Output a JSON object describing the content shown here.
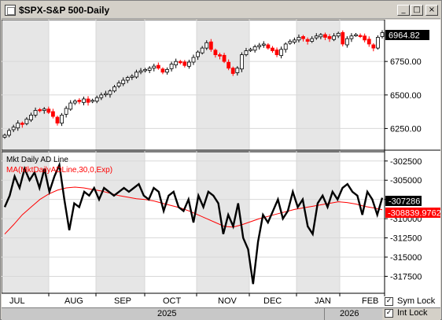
{
  "window": {
    "title": "$SPX-S&P 500-Daily",
    "minimize": "_",
    "maximize": "□",
    "close": "×"
  },
  "price_panel": {
    "last_price_label": "6964.82",
    "y_ticks": [
      "6964.82",
      "6750.00",
      "6500.00",
      "6250.00"
    ]
  },
  "indicator_panel": {
    "label_line": "Mkt Daily AD Line",
    "label_ma": "MA(MktDailyADLine,30,0,Exp)",
    "last_value_label": "-307286",
    "last_ma_label": "-308839.9762",
    "y_ticks": [
      "-302500",
      "-305000",
      "-307500",
      "-310000",
      "-312500",
      "-315000",
      "-317500"
    ]
  },
  "x_axis": {
    "months": [
      "JUL",
      "AUG",
      "SEP",
      "OCT",
      "NOV",
      "DEC",
      "JAN",
      "FEB"
    ],
    "years": [
      "2025",
      "2026"
    ]
  },
  "footer": {
    "sym_lock": "Sym Lock",
    "int_lock": "Int Lock",
    "sym_lock_checked": true,
    "int_lock_checked": true
  },
  "colors": {
    "up_candle": "#000000",
    "down_candle": "#ff0000",
    "ad_line": "#000000",
    "ma_line": "#ff0000",
    "last_value_bg": "#000000",
    "last_ma_bg": "#ff0000"
  },
  "chart_data": {
    "type": "line",
    "series": [
      {
        "name": "$SPX-S&P 500-Daily",
        "values": [
          6200,
          6235,
          6260,
          6290,
          6280,
          6320,
          6350,
          6385,
          6390,
          6395,
          6370,
          6340,
          6290,
          6350,
          6400,
          6440,
          6455,
          6450,
          6470,
          6445,
          6460,
          6480,
          6500,
          6510,
          6530,
          6560,
          6590,
          6610,
          6630,
          6640,
          6670,
          6680,
          6690,
          6700,
          6715,
          6700,
          6670,
          6690,
          6730,
          6750,
          6740,
          6720,
          6745,
          6780,
          6820,
          6850,
          6890,
          6840,
          6800,
          6790,
          6750,
          6700,
          6660,
          6700,
          6800,
          6830,
          6840,
          6860,
          6870,
          6880,
          6850,
          6830,
          6800,
          6840,
          6880,
          6900,
          6910,
          6930,
          6920,
          6900,
          6920,
          6940,
          6950,
          6930,
          6920,
          6940,
          6960,
          6880,
          6920,
          6940,
          6950,
          6940,
          6910,
          6880,
          6850,
          6930,
          6964.82
        ]
      },
      {
        "name": "Mkt Daily AD Line",
        "values": [
          -308500,
          -307000,
          -304500,
          -306000,
          -303500,
          -305000,
          -304000,
          -306000,
          -303500,
          -306500,
          -304500,
          -303000,
          -307500,
          -311500,
          -308000,
          -308500,
          -306500,
          -307000,
          -306000,
          -307500,
          -306000,
          -306500,
          -307000,
          -306500,
          -306000,
          -306500,
          -306000,
          -305500,
          -307000,
          -307500,
          -306000,
          -306500,
          -309000,
          -307000,
          -306500,
          -308500,
          -309000,
          -307500,
          -310500,
          -307000,
          -308500,
          -306500,
          -307000,
          -308000,
          -312000,
          -309500,
          -311000,
          -308000,
          -312500,
          -314000,
          -318500,
          -313000,
          -309500,
          -310500,
          -309000,
          -307500,
          -310000,
          -309000,
          -306500,
          -308500,
          -307500,
          -311000,
          -312000,
          -308000,
          -307000,
          -308500,
          -306500,
          -307500,
          -306000,
          -305500,
          -306500,
          -307000,
          -309500,
          -306500,
          -307500,
          -309500,
          -307286
        ]
      },
      {
        "name": "MA(MktDailyADLine,30,0,Exp)",
        "values": [
          -312000,
          -310800,
          -309500,
          -308500,
          -307500,
          -306800,
          -306300,
          -306000,
          -305900,
          -306000,
          -306200,
          -306400,
          -306700,
          -307000,
          -307200,
          -307400,
          -307500,
          -307700,
          -308000,
          -308300,
          -308600,
          -309000,
          -309500,
          -310000,
          -310500,
          -311000,
          -311100,
          -310800,
          -310400,
          -310000,
          -309700,
          -309400,
          -309100,
          -308800,
          -308600,
          -308400,
          -308200,
          -308000,
          -307800,
          -307900,
          -308100,
          -308400,
          -308600,
          -308839.9762
        ]
      }
    ],
    "xlabel": "",
    "ylabel": "",
    "ylim_price": [
      6100,
      7050
    ],
    "ylim_ad": [
      -319500,
      -301500
    ],
    "grid": true
  }
}
